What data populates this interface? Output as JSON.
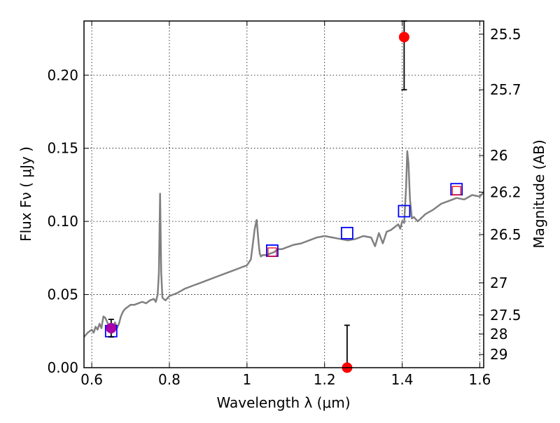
{
  "chart_data": {
    "type": "scatter",
    "title": "",
    "xlabel": "Wavelength  λ (μm)",
    "ylabel": "Flux  Fν  ( μJy )",
    "y2label": "Magnitude (AB)",
    "xlim": [
      0.58,
      1.61
    ],
    "ylim": [
      0.0,
      0.237
    ],
    "grid": true,
    "x_ticks": [
      0.6,
      0.8,
      1.0,
      1.2,
      1.4,
      1.6
    ],
    "x_tick_labels": [
      "0.6",
      "0.8",
      "1",
      "1.2",
      "1.4",
      "1.6"
    ],
    "y_ticks": [
      0.0,
      0.05,
      0.1,
      0.15,
      0.2
    ],
    "y_tick_labels": [
      "0.00",
      "0.05",
      "0.10",
      "0.15",
      "0.20"
    ],
    "magnitude_ticks": [
      {
        "label": "25.5",
        "value": 0.228
      },
      {
        "label": "25.7",
        "value": 0.19
      },
      {
        "label": "26",
        "value": 0.145
      },
      {
        "label": "26.2",
        "value": 0.12
      },
      {
        "label": "26.5",
        "value": 0.091
      },
      {
        "label": "27",
        "value": 0.058
      },
      {
        "label": "27.5",
        "value": 0.036
      },
      {
        "label": "28",
        "value": 0.023
      },
      {
        "label": "29",
        "value": 0.009
      }
    ],
    "series": [
      {
        "kind": "model_spectrum",
        "color": "#808080",
        "x": [
          0.58,
          0.59,
          0.6,
          0.605,
          0.61,
          0.615,
          0.62,
          0.625,
          0.63,
          0.635,
          0.64,
          0.645,
          0.65,
          0.655,
          0.66,
          0.665,
          0.67,
          0.675,
          0.68,
          0.685,
          0.69,
          0.7,
          0.71,
          0.72,
          0.73,
          0.74,
          0.75,
          0.76,
          0.765,
          0.77,
          0.773,
          0.776,
          0.779,
          0.782,
          0.785,
          0.79,
          0.8,
          0.82,
          0.84,
          0.86,
          0.88,
          0.9,
          0.92,
          0.94,
          0.96,
          0.98,
          1.0,
          1.01,
          1.02,
          1.025,
          1.03,
          1.033,
          1.036,
          1.04,
          1.05,
          1.06,
          1.07,
          1.08,
          1.09,
          1.1,
          1.12,
          1.14,
          1.16,
          1.18,
          1.2,
          1.22,
          1.24,
          1.26,
          1.28,
          1.3,
          1.32,
          1.33,
          1.34,
          1.35,
          1.36,
          1.37,
          1.38,
          1.39,
          1.395,
          1.4,
          1.405,
          1.41,
          1.413,
          1.416,
          1.42,
          1.425,
          1.43,
          1.44,
          1.46,
          1.48,
          1.5,
          1.52,
          1.54,
          1.56,
          1.58,
          1.6,
          1.61
        ],
        "y": [
          0.021,
          0.024,
          0.026,
          0.024,
          0.028,
          0.026,
          0.03,
          0.027,
          0.035,
          0.034,
          0.031,
          0.028,
          0.029,
          0.026,
          0.031,
          0.027,
          0.03,
          0.035,
          0.038,
          0.04,
          0.041,
          0.043,
          0.043,
          0.044,
          0.045,
          0.044,
          0.046,
          0.047,
          0.045,
          0.05,
          0.065,
          0.119,
          0.065,
          0.048,
          0.047,
          0.046,
          0.049,
          0.051,
          0.054,
          0.056,
          0.058,
          0.06,
          0.062,
          0.064,
          0.066,
          0.068,
          0.07,
          0.074,
          0.095,
          0.101,
          0.085,
          0.078,
          0.076,
          0.077,
          0.077,
          0.078,
          0.079,
          0.081,
          0.081,
          0.082,
          0.084,
          0.085,
          0.087,
          0.089,
          0.09,
          0.089,
          0.088,
          0.087,
          0.088,
          0.09,
          0.089,
          0.083,
          0.092,
          0.085,
          0.093,
          0.094,
          0.096,
          0.098,
          0.095,
          0.1,
          0.099,
          0.123,
          0.148,
          0.14,
          0.115,
          0.102,
          0.103,
          0.1,
          0.105,
          0.108,
          0.112,
          0.114,
          0.116,
          0.115,
          0.118,
          0.117,
          0.12
        ]
      },
      {
        "kind": "model_bands",
        "marker": "open-square",
        "color": "#0000ff",
        "x": [
          0.65,
          1.065,
          1.258,
          1.405,
          1.54
        ],
        "y": [
          0.025,
          0.08,
          0.092,
          0.107,
          0.122
        ]
      },
      {
        "kind": "observed_bands",
        "marker": "open-square",
        "color": "#ff0000",
        "x": [
          1.065,
          1.54
        ],
        "y": [
          0.079,
          0.121
        ]
      },
      {
        "kind": "detections",
        "marker": "filled-circle",
        "points": [
          {
            "x": 0.65,
            "y": 0.027,
            "yerr_low": 0.021,
            "yerr_high": 0.033,
            "color": "#aa00aa"
          },
          {
            "x": 1.405,
            "y": 0.226,
            "yerr_low": 0.19,
            "yerr_high": 0.237,
            "color": "#ff0000"
          },
          {
            "x": 1.258,
            "y": 0.0,
            "yerr_low": 0.0,
            "yerr_high": 0.029,
            "color": "#ff0000"
          }
        ]
      }
    ]
  }
}
